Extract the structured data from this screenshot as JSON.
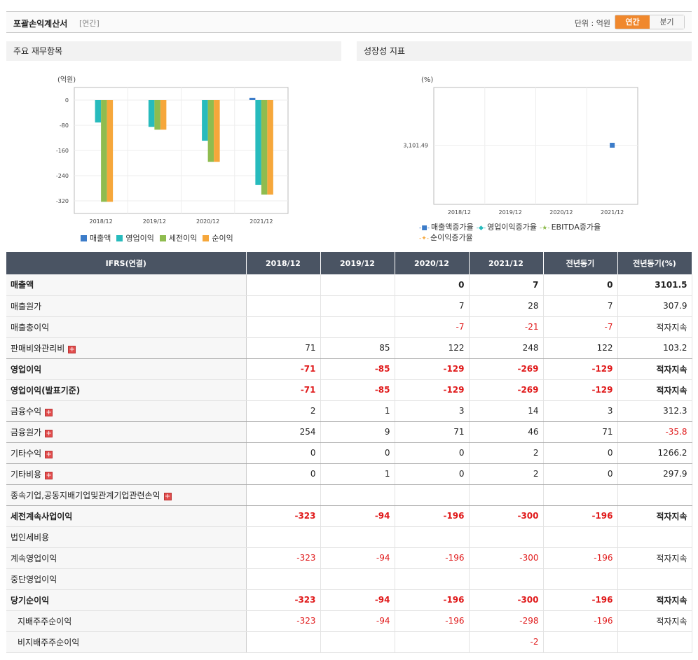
{
  "header": {
    "title": "포괄손익계산서",
    "subtitle": "[연간]",
    "unit_label": "단위 : 억원",
    "toggle_annual": "연간",
    "toggle_quarter": "분기"
  },
  "panels": {
    "left_title": "주요 재무항목",
    "right_title": "성장성 지표"
  },
  "chart_data": [
    {
      "type": "bar",
      "ylabel": "(억원)",
      "categories": [
        "2018/12",
        "2019/12",
        "2020/12",
        "2021/12"
      ],
      "ylim": [
        -360,
        40
      ],
      "yticks": [
        0,
        -80,
        -160,
        -240,
        -320
      ],
      "series": [
        {
          "name": "매출액",
          "color": "#3c7cc9",
          "values": [
            0,
            0,
            0,
            7
          ]
        },
        {
          "name": "영업이익",
          "color": "#27bbbd",
          "values": [
            -71,
            -85,
            -129,
            -269
          ]
        },
        {
          "name": "세전이익",
          "color": "#8fbc4f",
          "values": [
            -323,
            -94,
            -196,
            -300
          ]
        },
        {
          "name": "순이익",
          "color": "#f6a73b",
          "values": [
            -323,
            -94,
            -196,
            -300
          ]
        }
      ]
    },
    {
      "type": "line",
      "ylabel": "(%)",
      "categories": [
        "2018/12",
        "2019/12",
        "2020/12",
        "2021/12"
      ],
      "yticks": [
        3101.49
      ],
      "ytick_labels": [
        "3,101.49"
      ],
      "series": [
        {
          "name": "매출액증가율",
          "color": "#3c7cc9",
          "marker": "square",
          "values": [
            null,
            null,
            null,
            3101.49
          ]
        },
        {
          "name": "영업이익증가율",
          "color": "#27bbbd",
          "marker": "diamond",
          "values": [
            null,
            null,
            null,
            null
          ]
        },
        {
          "name": "EBITDA증가율",
          "color": "#8fbc4f",
          "marker": "star",
          "values": [
            null,
            null,
            null,
            null
          ]
        },
        {
          "name": "순이익증가율",
          "color": "#f6a73b",
          "marker": "cross",
          "values": [
            null,
            null,
            null,
            null
          ]
        }
      ]
    }
  ],
  "table": {
    "headers": [
      "IFRS(연결)",
      "2018/12",
      "2019/12",
      "2020/12",
      "2021/12",
      "전년동기",
      "전년동기(%)"
    ],
    "rows": [
      {
        "label": "매출액",
        "values": [
          "",
          "",
          "0",
          "7",
          "0",
          "3101.5"
        ],
        "bold": true,
        "sep": false,
        "expand": false,
        "indent": false
      },
      {
        "label": "매출원가",
        "values": [
          "",
          "",
          "7",
          "28",
          "7",
          "307.9"
        ],
        "bold": false,
        "sep": false,
        "expand": false,
        "indent": false
      },
      {
        "label": "매출총이익",
        "values": [
          "",
          "",
          "-7",
          "-21",
          "-7",
          "적자지속"
        ],
        "bold": false,
        "sep": false,
        "expand": false,
        "indent": false
      },
      {
        "label": "판매비와관리비",
        "values": [
          "71",
          "85",
          "122",
          "248",
          "122",
          "103.2"
        ],
        "bold": false,
        "sep": true,
        "expand": true,
        "indent": false
      },
      {
        "label": "영업이익",
        "values": [
          "-71",
          "-85",
          "-129",
          "-269",
          "-129",
          "적자지속"
        ],
        "bold": true,
        "sep": false,
        "expand": false,
        "indent": false
      },
      {
        "label": "영업이익(발표기준)",
        "values": [
          "-71",
          "-85",
          "-129",
          "-269",
          "-129",
          "적자지속"
        ],
        "bold": true,
        "sep": false,
        "expand": false,
        "indent": false
      },
      {
        "label": "금융수익",
        "values": [
          "2",
          "1",
          "3",
          "14",
          "3",
          "312.3"
        ],
        "bold": false,
        "sep": true,
        "expand": true,
        "indent": false
      },
      {
        "label": "금융원가",
        "values": [
          "254",
          "9",
          "71",
          "46",
          "71",
          "-35.8"
        ],
        "bold": false,
        "sep": true,
        "expand": true,
        "indent": false
      },
      {
        "label": "기타수익",
        "values": [
          "0",
          "0",
          "0",
          "2",
          "0",
          "1266.2"
        ],
        "bold": false,
        "sep": true,
        "expand": true,
        "indent": false
      },
      {
        "label": "기타비용",
        "values": [
          "0",
          "1",
          "0",
          "2",
          "0",
          "297.9"
        ],
        "bold": false,
        "sep": true,
        "expand": true,
        "indent": false
      },
      {
        "label": "종속기업,공동지배기업및관계기업관련손익",
        "values": [
          "",
          "",
          "",
          "",
          "",
          ""
        ],
        "bold": false,
        "sep": true,
        "expand": true,
        "indent": false
      },
      {
        "label": "세전계속사업이익",
        "values": [
          "-323",
          "-94",
          "-196",
          "-300",
          "-196",
          "적자지속"
        ],
        "bold": true,
        "sep": false,
        "expand": false,
        "indent": false
      },
      {
        "label": "법인세비용",
        "values": [
          "",
          "",
          "",
          "",
          "",
          ""
        ],
        "bold": false,
        "sep": false,
        "expand": false,
        "indent": false
      },
      {
        "label": "계속영업이익",
        "values": [
          "-323",
          "-94",
          "-196",
          "-300",
          "-196",
          "적자지속"
        ],
        "bold": false,
        "sep": false,
        "expand": false,
        "indent": false
      },
      {
        "label": "중단영업이익",
        "values": [
          "",
          "",
          "",
          "",
          "",
          ""
        ],
        "bold": false,
        "sep": false,
        "expand": false,
        "indent": false
      },
      {
        "label": "당기순이익",
        "values": [
          "-323",
          "-94",
          "-196",
          "-300",
          "-196",
          "적자지속"
        ],
        "bold": true,
        "sep": false,
        "expand": false,
        "indent": false
      },
      {
        "label": "지배주주순이익",
        "values": [
          "-323",
          "-94",
          "-196",
          "-298",
          "-196",
          "적자지속"
        ],
        "bold": false,
        "sep": false,
        "expand": false,
        "indent": true
      },
      {
        "label": "비지배주주순이익",
        "values": [
          "",
          "",
          "",
          "-2",
          "",
          ""
        ],
        "bold": false,
        "sep": false,
        "expand": false,
        "indent": true
      }
    ]
  }
}
